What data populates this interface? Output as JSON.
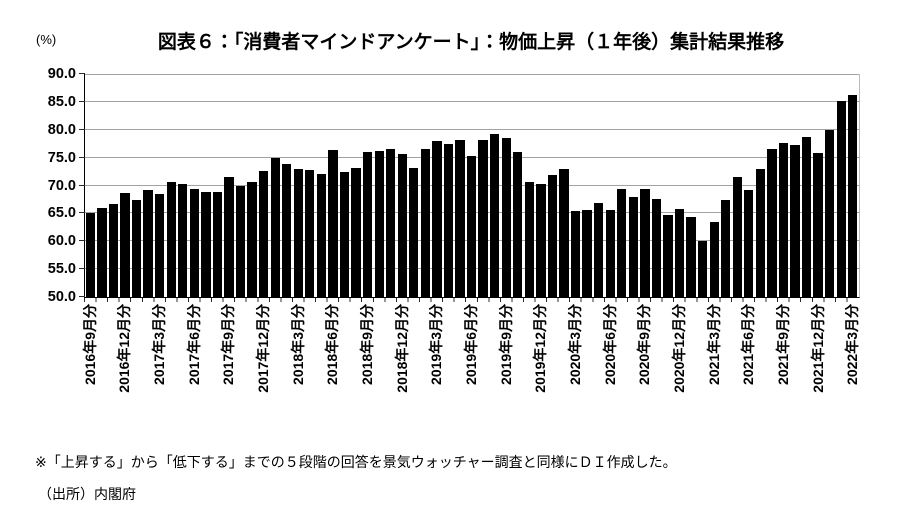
{
  "title": "図表６：「消費者マインドアンケート」：物価上昇（１年後）集計結果推移",
  "unit_label": "(%)",
  "footnotes": {
    "note": "※「上昇する」から「低下する」までの５段階の回答を景気ウォッチャー調査と同様にＤＩ作成した。",
    "source": "（出所）内閣府"
  },
  "chart_data": {
    "type": "bar",
    "title": "図表６：「消費者マインドアンケート」：物価上昇（１年後）集計結果推移",
    "ylabel": "(%)",
    "ylim": [
      50.0,
      90.0
    ],
    "ytick_step": 5,
    "ytick_labels": [
      "90.0",
      "85.0",
      "80.0",
      "75.0",
      "70.0",
      "65.0",
      "60.0",
      "55.0",
      "50.0"
    ],
    "grid": "horizontal",
    "legend": "none",
    "bar_color": "#000000",
    "frequency": "monthly",
    "start_month": "2016年9月",
    "x_tick_every": 3,
    "x_tick_labels": [
      "2016年9月分",
      "2016年12月分",
      "2017年3月分",
      "2017年6月分",
      "2017年9月分",
      "2017年12月分",
      "2018年3月分",
      "2018年6月分",
      "2018年9月分",
      "2018年12月分",
      "2019年3月分",
      "2019年6月分",
      "2019年9月分",
      "2019年12月分",
      "2020年3月分",
      "2020年6月分",
      "2020年9月分",
      "2020年12月分",
      "2021年3月分",
      "2021年6月分",
      "2021年9月分",
      "2021年12月分",
      "2022年3月分"
    ],
    "values": [
      65.0,
      66.0,
      66.7,
      68.7,
      67.4,
      69.2,
      68.4,
      70.7,
      70.3,
      69.3,
      68.9,
      68.9,
      71.6,
      69.9,
      70.7,
      72.6,
      74.9,
      73.8,
      72.9,
      72.7,
      72.1,
      76.4,
      72.5,
      73.2,
      76.0,
      76.2,
      76.5,
      75.6,
      73.2,
      76.5,
      77.9,
      77.4,
      78.2,
      75.3,
      78.2,
      79.3,
      78.5,
      76.0,
      70.6,
      70.3,
      71.9,
      72.9,
      65.4,
      65.6,
      66.9,
      65.6,
      69.3,
      68.0,
      69.3,
      67.6,
      64.7,
      65.7,
      64.3,
      60.1,
      63.4,
      67.4,
      71.6,
      69.2,
      72.9,
      76.6,
      77.6,
      77.2,
      78.7,
      75.8,
      79.9,
      85.1,
      86.2
    ]
  }
}
